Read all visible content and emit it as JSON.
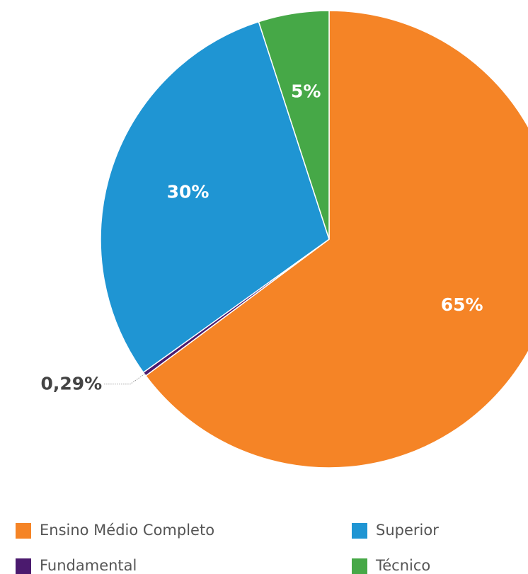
{
  "chart_data": {
    "type": "pie",
    "categories": [
      "Ensino Médio Completo",
      "Fundamental",
      "Superior",
      "Técnico"
    ],
    "values": [
      65,
      0.29,
      30,
      5
    ],
    "value_labels": [
      "65%",
      "0,29%",
      "30%",
      "5%"
    ],
    "colors": [
      "#f58426",
      "#4b1a6e",
      "#1f95d3",
      "#46a847"
    ],
    "legend": "bottom"
  }
}
